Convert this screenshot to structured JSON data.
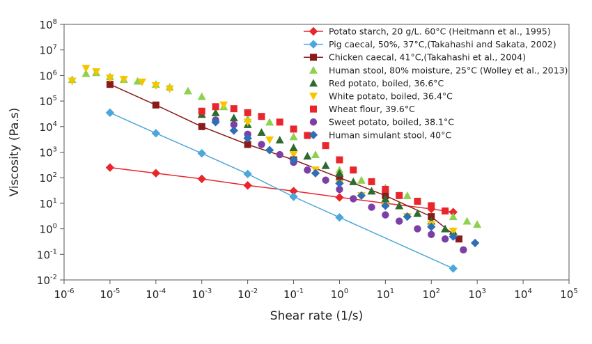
{
  "chart_data": {
    "type": "scatter",
    "title": "",
    "xlabel": "Shear rate (1/s)",
    "ylabel": "Viscosity (Pa.s)",
    "xscale": "log",
    "yscale": "log",
    "xlim": [
      1e-06,
      100000.0
    ],
    "ylim": [
      0.01,
      100000000.0
    ],
    "x_tick_exponents": [
      "-6",
      "-5",
      "-4",
      "-3",
      "-2",
      "-1",
      "0",
      "1",
      "2",
      "3",
      "4",
      "5"
    ],
    "y_tick_exponents": [
      "-2",
      "-1",
      "0",
      "1",
      "2",
      "3",
      "4",
      "5",
      "6",
      "7",
      "8"
    ],
    "tick_base": "10",
    "grid": false,
    "legend_position": "top-right",
    "series": [
      {
        "name": "Potato starch, 20 g/L. 60°C (Heitmann et al., 1995)",
        "marker": "diamond",
        "color": "#e8262c",
        "line": true,
        "x": [
          1e-05,
          0.0001,
          0.001,
          0.01,
          0.1,
          1,
          10,
          100,
          300
        ],
        "y": [
          250,
          150,
          90,
          50,
          30,
          17,
          10,
          6,
          4.5
        ]
      },
      {
        "name": "Pig caecal, 50%, 37°C,(Takahashi and Sakata, 2002)",
        "marker": "diamond",
        "color": "#4da6dc",
        "line": true,
        "x": [
          1e-05,
          0.0001,
          0.001,
          0.01,
          0.1,
          1,
          300
        ],
        "y": [
          35000,
          5500,
          900,
          140,
          18,
          2.8,
          0.028
        ]
      },
      {
        "name": "Chicken caecal, 41°C,(Takahashi et al., 2004)",
        "marker": "square",
        "color": "#8b1a1a",
        "line": true,
        "x": [
          1e-05,
          0.0001,
          0.001,
          0.01,
          0.1,
          1,
          10,
          100,
          400
        ],
        "y": [
          450000,
          70000,
          10000,
          2000,
          500,
          100,
          20,
          3,
          0.4
        ]
      },
      {
        "name": "Human stool, 80% moisture, 25°C (Wolley et al., 2013)",
        "marker": "triangle",
        "color": "#8fd14f",
        "line": false,
        "x": [
          1.5e-06,
          3e-06,
          5e-06,
          1e-05,
          2e-05,
          4e-05,
          0.0001,
          0.0002,
          0.0005,
          0.001,
          0.003,
          0.01,
          0.03,
          0.1,
          0.3,
          1,
          3,
          10,
          30,
          100,
          300,
          600,
          1000
        ],
        "y": [
          700000,
          1200000,
          1300000,
          900000,
          700000,
          600000,
          450000,
          350000,
          250000,
          150000,
          60000,
          20000,
          15000,
          4000,
          800,
          200,
          80,
          40,
          20,
          8,
          3,
          2,
          1.5
        ]
      },
      {
        "name": "Red potato, boiled, 36.6°C",
        "marker": "triangle",
        "color": "#2e6b2e",
        "line": false,
        "x": [
          0.001,
          0.002,
          0.005,
          0.01,
          0.02,
          0.05,
          0.1,
          0.2,
          0.5,
          1,
          2,
          5,
          10,
          20,
          50,
          100,
          200,
          300
        ],
        "y": [
          30000,
          35000,
          22000,
          12000,
          6000,
          3000,
          1500,
          700,
          300,
          150,
          70,
          30,
          15,
          8,
          4,
          2,
          1,
          0.8
        ]
      },
      {
        "name": "White potato, boiled, 36.4°C",
        "marker": "triangle-down",
        "color": "#f7c500",
        "line": false,
        "x": [
          1.5e-06,
          3e-06,
          5e-06,
          1e-05,
          2e-05,
          5e-05,
          0.0001,
          0.0002,
          0.003,
          0.01,
          0.03,
          0.1,
          0.3,
          1,
          3,
          10,
          30,
          100,
          300
        ],
        "y": [
          600000,
          1900000,
          1400000,
          800000,
          700000,
          550000,
          400000,
          300000,
          70000,
          15000,
          3000,
          800,
          200,
          60,
          20,
          8,
          3,
          1.5,
          0.8
        ]
      },
      {
        "name": "Wheat flour, 39.6°C",
        "marker": "square",
        "color": "#e8262c",
        "line": false,
        "x": [
          0.001,
          0.002,
          0.005,
          0.01,
          0.02,
          0.05,
          0.1,
          0.2,
          0.5,
          1,
          2,
          5,
          10,
          20,
          50,
          100,
          200
        ],
        "y": [
          40000,
          60000,
          50000,
          35000,
          25000,
          15000,
          8000,
          4500,
          1800,
          500,
          200,
          70,
          35,
          20,
          12,
          8,
          5
        ]
      },
      {
        "name": "Sweet potato, boiled, 38.1°C",
        "marker": "circle",
        "color": "#7b3fa6",
        "line": false,
        "x": [
          0.002,
          0.005,
          0.01,
          0.02,
          0.05,
          0.1,
          0.2,
          0.5,
          1,
          2,
          5,
          10,
          20,
          50,
          100,
          200,
          500
        ],
        "y": [
          18000,
          12000,
          5000,
          2000,
          800,
          400,
          200,
          80,
          35,
          15,
          7,
          3.5,
          2,
          1,
          0.6,
          0.4,
          0.15
        ]
      },
      {
        "name": "Human simulant stool, 40°C",
        "marker": "diamond",
        "color": "#2f6fb6",
        "line": false,
        "x": [
          0.002,
          0.005,
          0.01,
          0.03,
          0.1,
          0.3,
          1,
          3,
          10,
          30,
          100,
          300,
          900
        ],
        "y": [
          15000,
          7000,
          3500,
          1200,
          500,
          150,
          60,
          20,
          8,
          3,
          1.2,
          0.5,
          0.28
        ]
      }
    ]
  }
}
